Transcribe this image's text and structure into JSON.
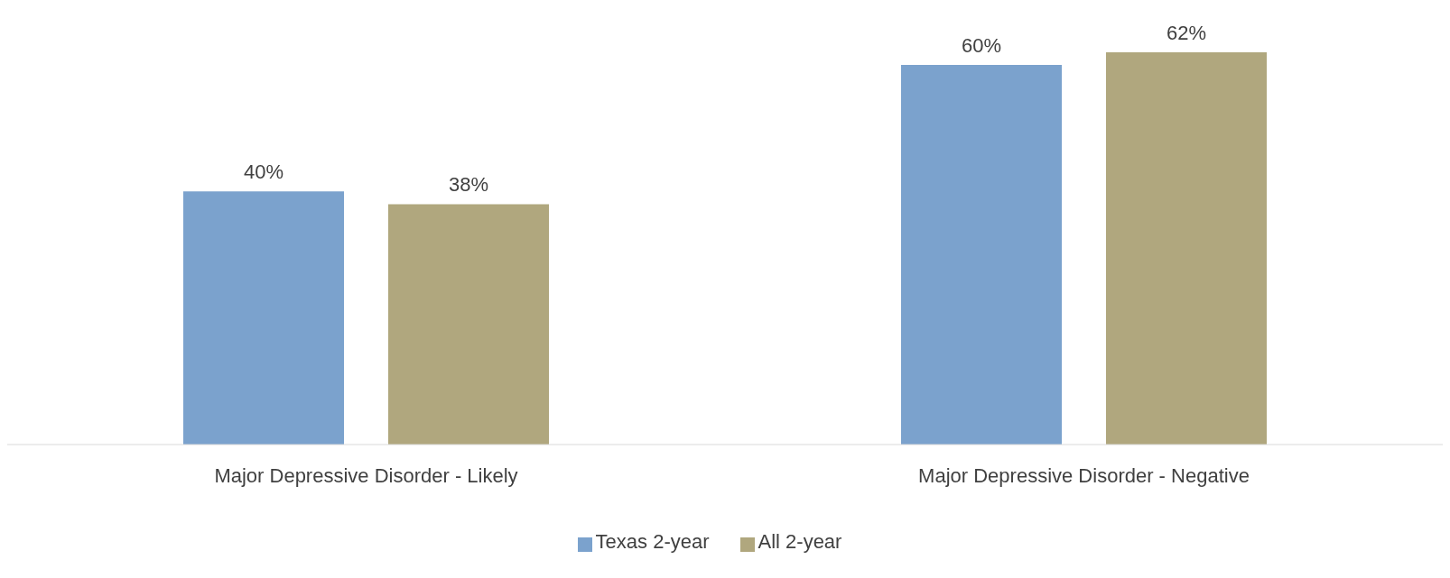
{
  "chart_data": {
    "type": "bar",
    "categories": [
      "Major Depressive Disorder - Likely",
      "Major Depressive Disorder - Negative"
    ],
    "series": [
      {
        "name": "Texas 2-year",
        "color": "#7ba2cd",
        "values": [
          40,
          60
        ],
        "value_labels": [
          "40%",
          "60%"
        ]
      },
      {
        "name": "All 2-year",
        "color": "#b0a77e",
        "values": [
          38,
          62
        ],
        "value_labels": [
          "38%",
          "62%"
        ]
      }
    ],
    "legend": "bottom",
    "grid": false
  }
}
